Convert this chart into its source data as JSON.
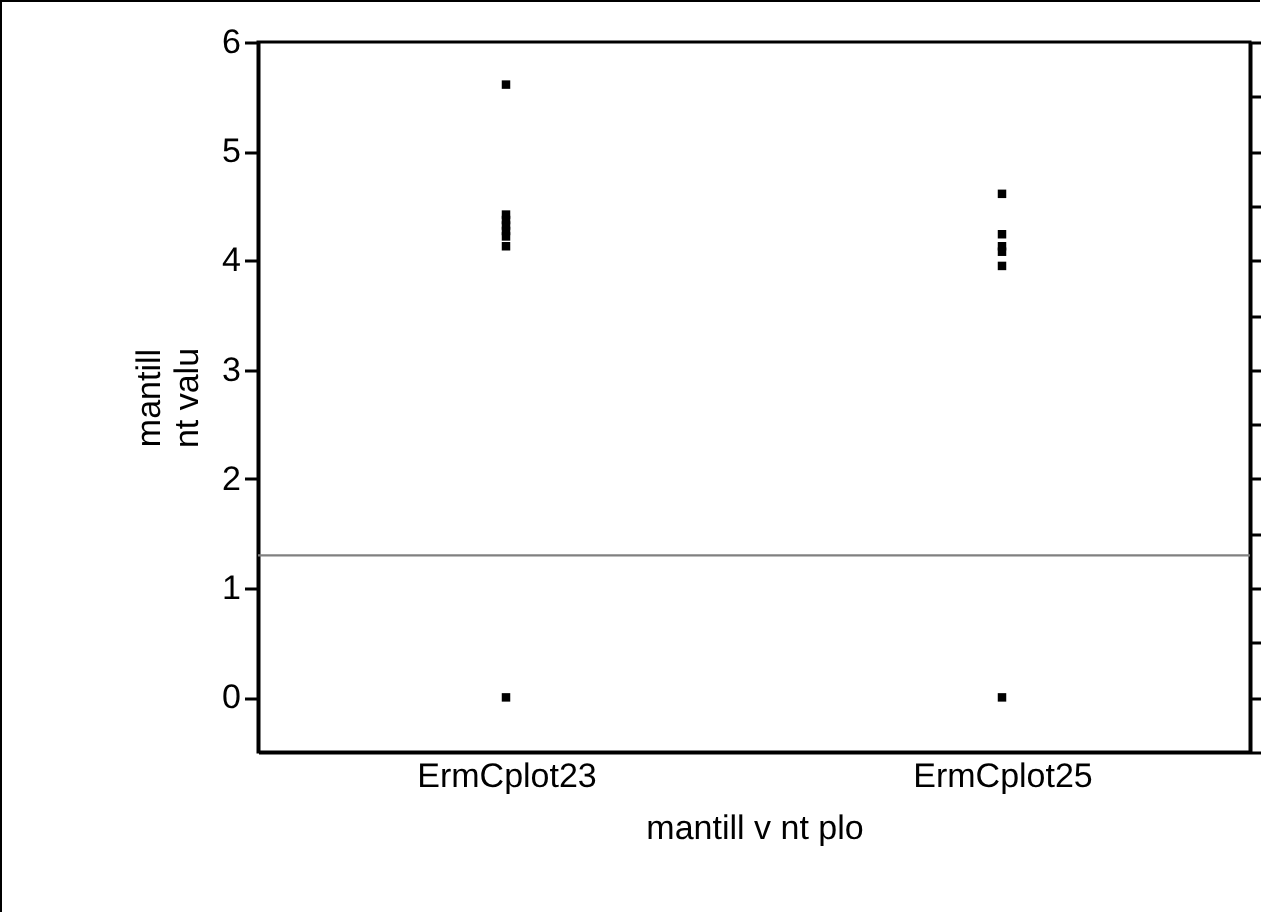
{
  "chart_data": {
    "type": "scatter",
    "xlabel": "mantill v nt plo",
    "ylabel": "mantill\nnt valu",
    "categories": [
      "ErmCplot23",
      "ErmCplot25"
    ],
    "series": [
      {
        "color": "#000000",
        "x": [
          "ErmCplot23",
          "ErmCplot23",
          "ErmCplot23",
          "ErmCplot23",
          "ErmCplot23",
          "ErmCplot23",
          "ErmCplot23",
          "ErmCplot23",
          "ErmCplot25",
          "ErmCplot25",
          "ErmCplot25",
          "ErmCplot25",
          "ErmCplot25",
          "ErmCplot25"
        ],
        "values": [
          5.61,
          4.42,
          4.37,
          4.32,
          4.27,
          4.22,
          4.13,
          0,
          4.61,
          4.24,
          4.13,
          4.08,
          3.95,
          0
        ]
      }
    ],
    "ylim": [
      -0.5,
      6
    ],
    "yticks": [
      {
        "value": -0.5,
        "label": null
      },
      0,
      {
        "value": 0.5,
        "label": null
      },
      1,
      {
        "value": 1.5,
        "label": null
      },
      2,
      {
        "value": 2.5,
        "label": null
      },
      3,
      {
        "value": 3.5,
        "label": null
      },
      4,
      {
        "value": 4.5,
        "label": null
      },
      5,
      {
        "value": 5.5,
        "label": null
      },
      6
    ],
    "ref_lines": [
      {
        "axis": "y",
        "value": 1.3,
        "color": "#808080"
      }
    ],
    "marker": "square",
    "grid": false
  }
}
